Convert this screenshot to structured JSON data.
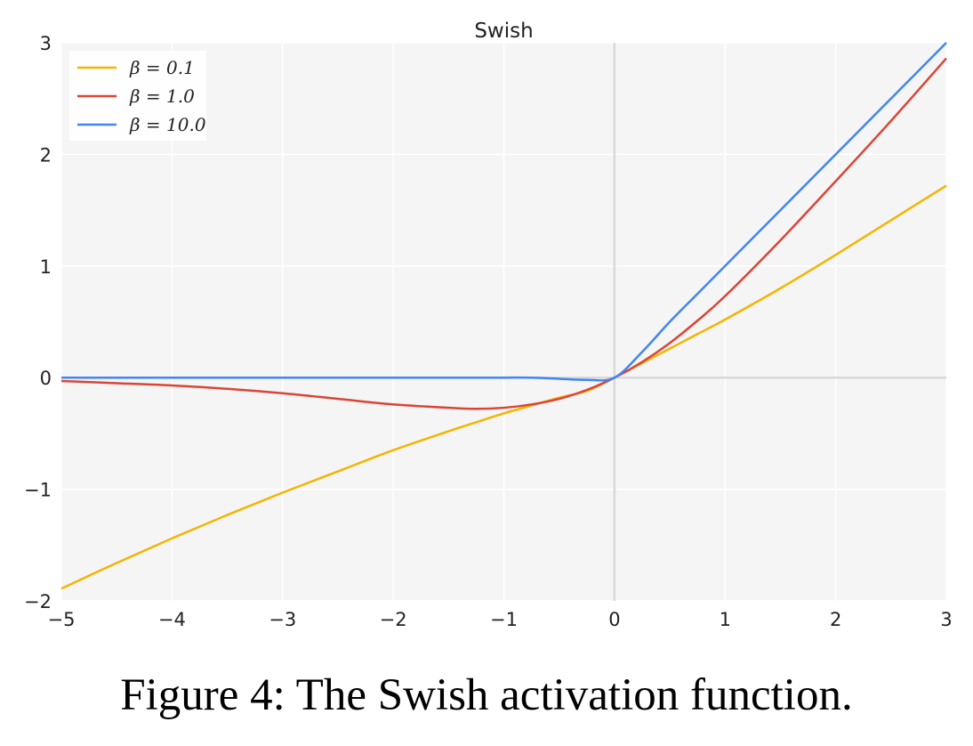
{
  "caption": "Figure 4: The Swish activation function.",
  "chart_data": {
    "type": "line",
    "title": "Swish",
    "xlabel": "",
    "ylabel": "",
    "xlim": [
      -5,
      3
    ],
    "ylim": [
      -2,
      3
    ],
    "x_ticks": [
      -5,
      -4,
      -3,
      -2,
      -1,
      0,
      1,
      2,
      3
    ],
    "y_ticks": [
      -2,
      -1,
      0,
      1,
      2,
      3
    ],
    "x_tick_labels": [
      "−5",
      "−4",
      "−3",
      "−2",
      "−1",
      "0",
      "1",
      "2",
      "3"
    ],
    "y_tick_labels": [
      "−2",
      "−1",
      "0",
      "1",
      "2",
      "3"
    ],
    "grid": true,
    "legend_position": "top-left",
    "x": [
      -5,
      -4.5,
      -4,
      -3.5,
      -3,
      -2.5,
      -2,
      -1.5,
      -1.25,
      -1,
      -0.75,
      -0.5,
      -0.25,
      0,
      0.25,
      0.5,
      0.75,
      1,
      1.5,
      2,
      2.5,
      3
    ],
    "series": [
      {
        "name": "β = 0.1",
        "color": "#F4B400",
        "values": [
          -1.89,
          -1.66,
          -1.44,
          -1.23,
          -1.03,
          -0.84,
          -0.65,
          -0.48,
          -0.4,
          -0.32,
          -0.25,
          -0.18,
          -0.12,
          0.0,
          0.13,
          0.26,
          0.39,
          0.52,
          0.8,
          1.1,
          1.41,
          1.72
        ]
      },
      {
        "name": "β = 1.0",
        "color": "#DB4437",
        "values": [
          -0.03,
          -0.05,
          -0.07,
          -0.1,
          -0.14,
          -0.19,
          -0.24,
          -0.27,
          -0.28,
          -0.27,
          -0.24,
          -0.19,
          -0.11,
          0.0,
          0.14,
          0.31,
          0.51,
          0.73,
          1.23,
          1.76,
          2.3,
          2.86
        ]
      },
      {
        "name": "β = 10.0",
        "color": "#4285F4",
        "values": [
          0.0,
          0.0,
          0.0,
          0.0,
          0.0,
          0.0,
          0.0,
          0.0,
          0.0,
          0.0,
          0.0,
          -0.01,
          -0.02,
          0.0,
          0.23,
          0.5,
          0.75,
          1.0,
          1.5,
          2.0,
          2.5,
          3.0
        ]
      }
    ]
  }
}
